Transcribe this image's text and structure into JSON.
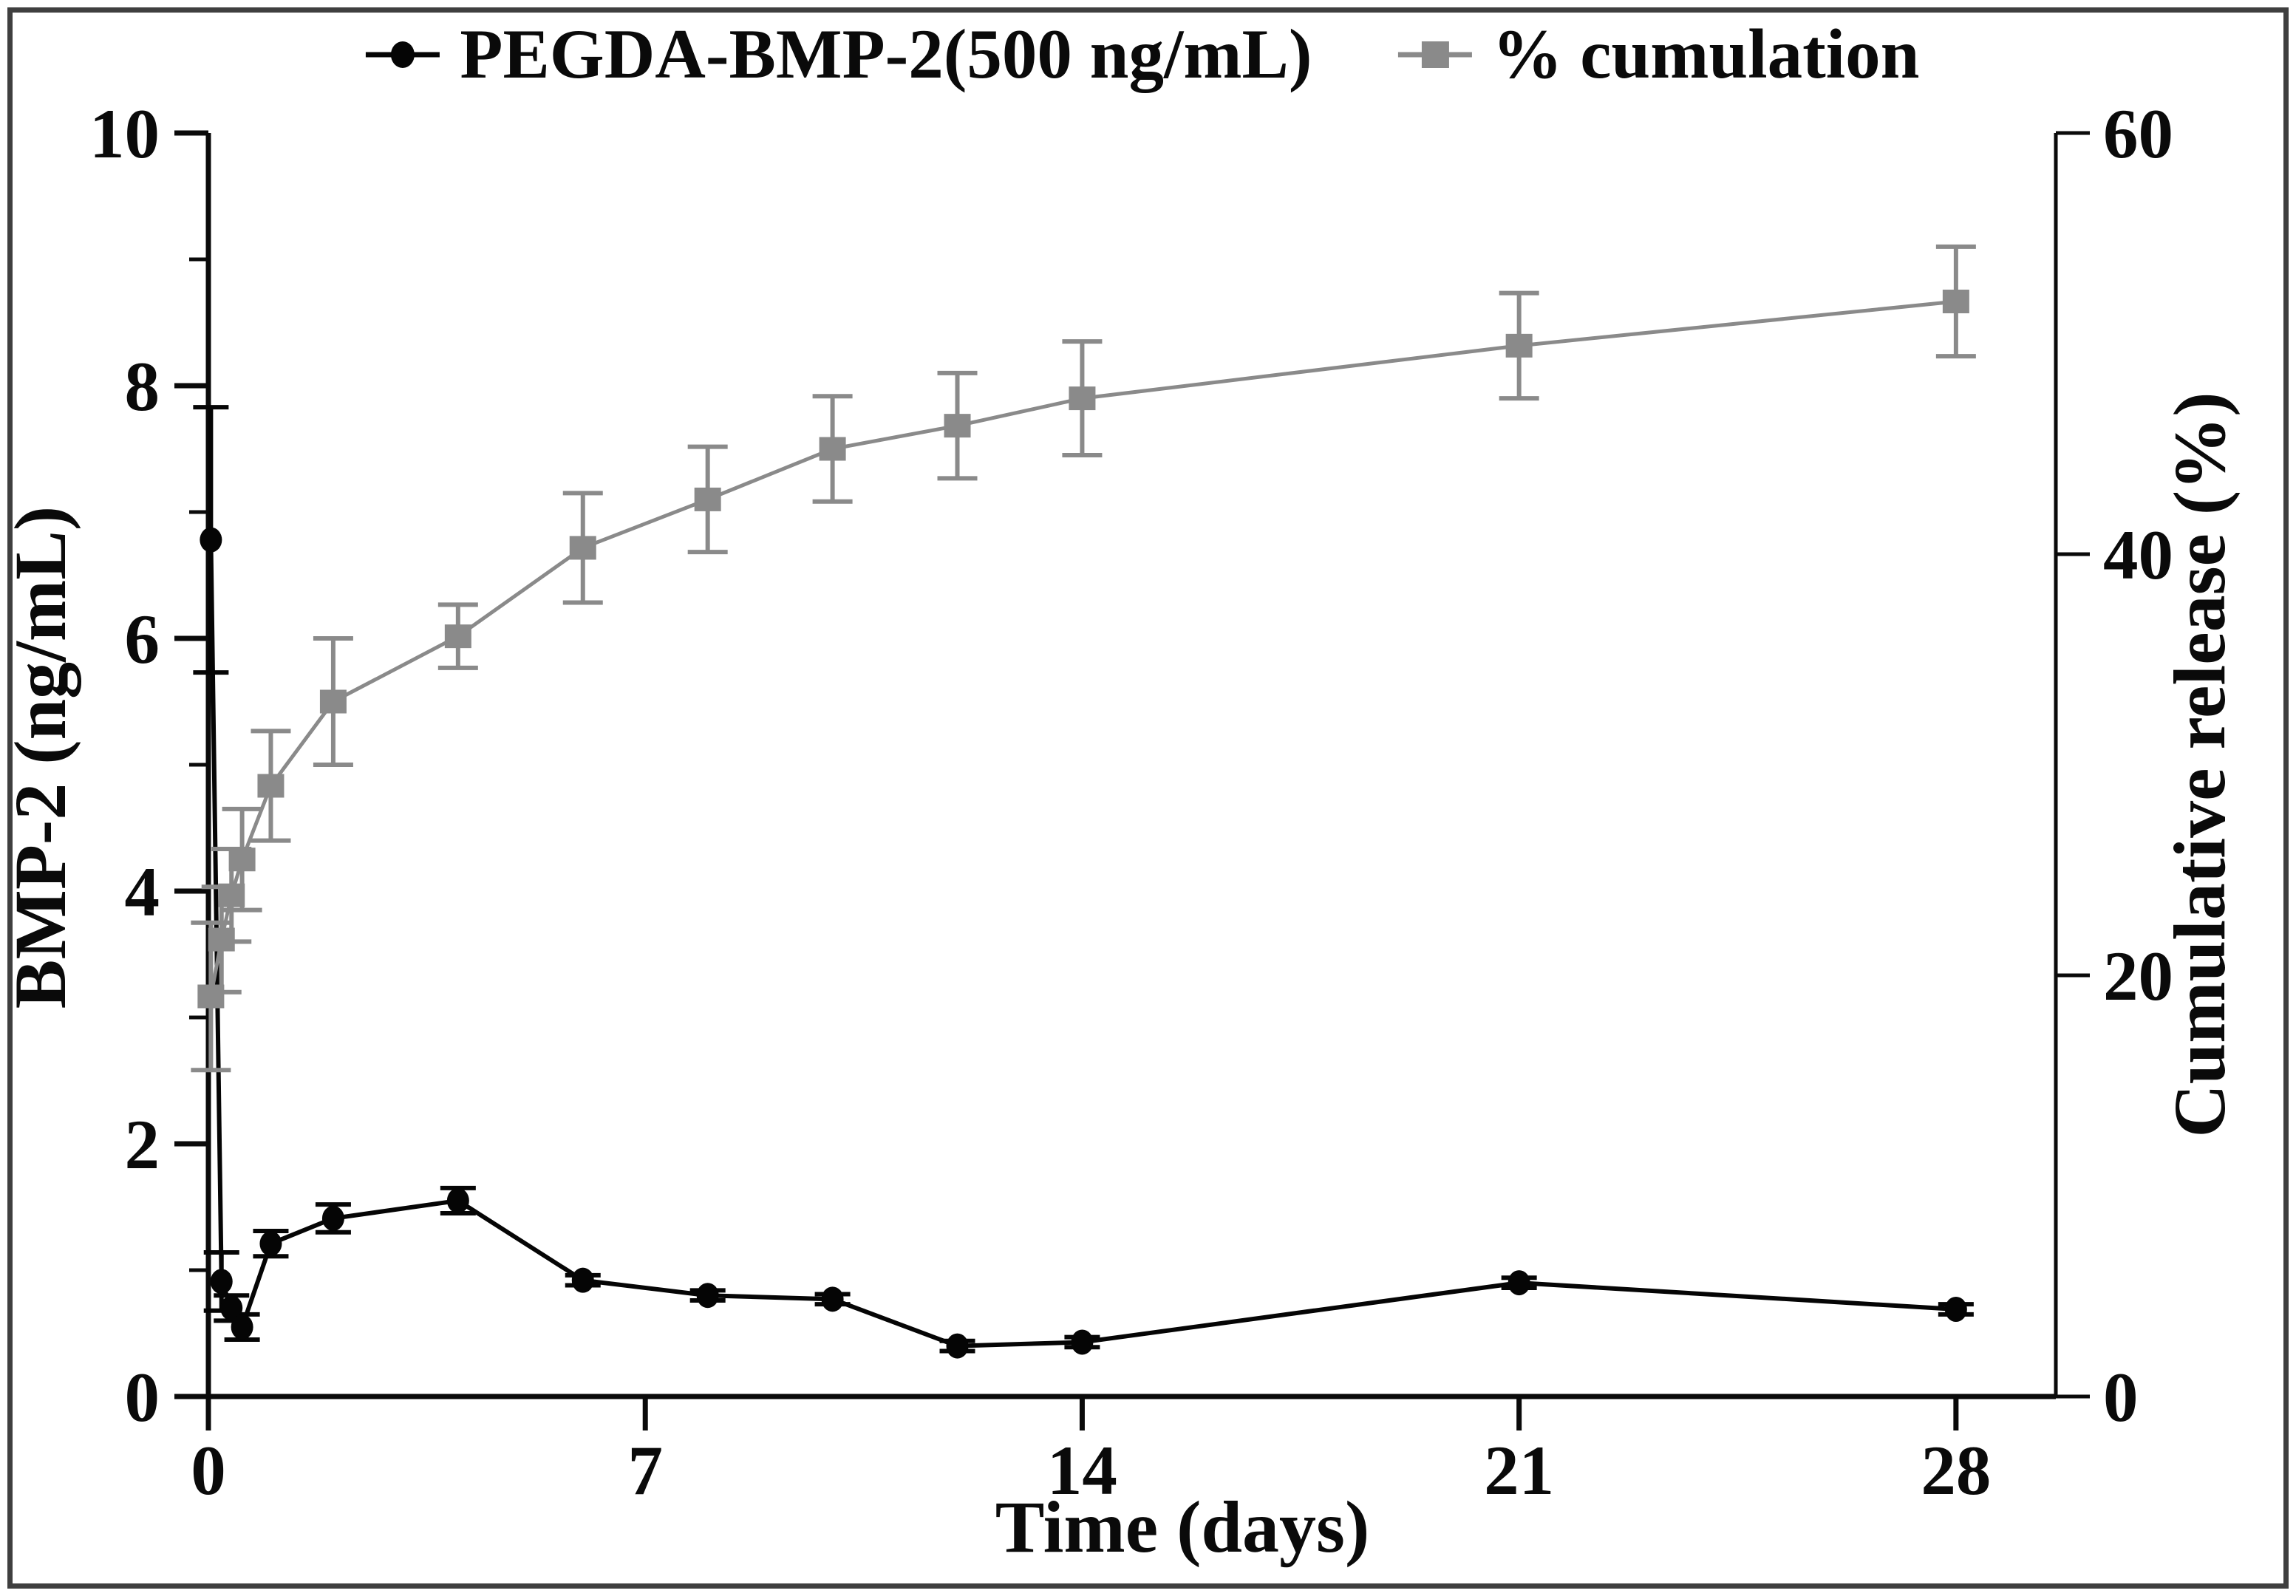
{
  "chart_data": {
    "type": "line",
    "title": "",
    "xlabel": "Time (days)",
    "ylabel_left": "BMP-2 (ng/mL)",
    "ylabel_right": "Cumulative release (%)",
    "xlim": [
      0,
      29.6
    ],
    "ylim_left": [
      0,
      10
    ],
    "ylim_right": [
      0,
      60
    ],
    "x_ticks": [
      0,
      7,
      14,
      21,
      28
    ],
    "y_left_ticks": [
      0,
      2,
      4,
      6,
      8,
      10
    ],
    "y_left_minor_ticks": [
      1,
      3,
      5,
      7,
      9
    ],
    "y_right_ticks": [
      0,
      20,
      40,
      60
    ],
    "grid": false,
    "legend_position": "top-center",
    "x": [
      0.04,
      0.21,
      0.37,
      0.54,
      1,
      2,
      4,
      6,
      8,
      10,
      12,
      14,
      21,
      28
    ],
    "series": [
      {
        "name": "PEGDA-BMP-2(500 ng/mL)",
        "axis": "left",
        "marker": "circle",
        "color": "#050505",
        "values": [
          6.78,
          0.91,
          0.7,
          0.55,
          1.21,
          1.41,
          1.55,
          0.92,
          0.8,
          0.77,
          0.4,
          0.43,
          0.9,
          0.69
        ],
        "errors": [
          1.05,
          0.23,
          0.1,
          0.1,
          0.1,
          0.11,
          0.1,
          0.04,
          0.04,
          0.04,
          0.04,
          0.04,
          0.04,
          0.04
        ]
      },
      {
        "name": "% cumulation",
        "axis": "right",
        "marker": "square",
        "color": "#8a8a8a",
        "values": [
          19.0,
          21.7,
          23.8,
          25.5,
          29.0,
          33.0,
          36.1,
          40.3,
          42.6,
          45.0,
          46.1,
          47.4,
          49.9,
          52.0
        ],
        "errors": [
          3.5,
          2.5,
          2.2,
          2.4,
          2.6,
          3.0,
          1.5,
          2.6,
          2.5,
          2.5,
          2.5,
          2.7,
          2.5,
          2.6
        ]
      }
    ]
  }
}
